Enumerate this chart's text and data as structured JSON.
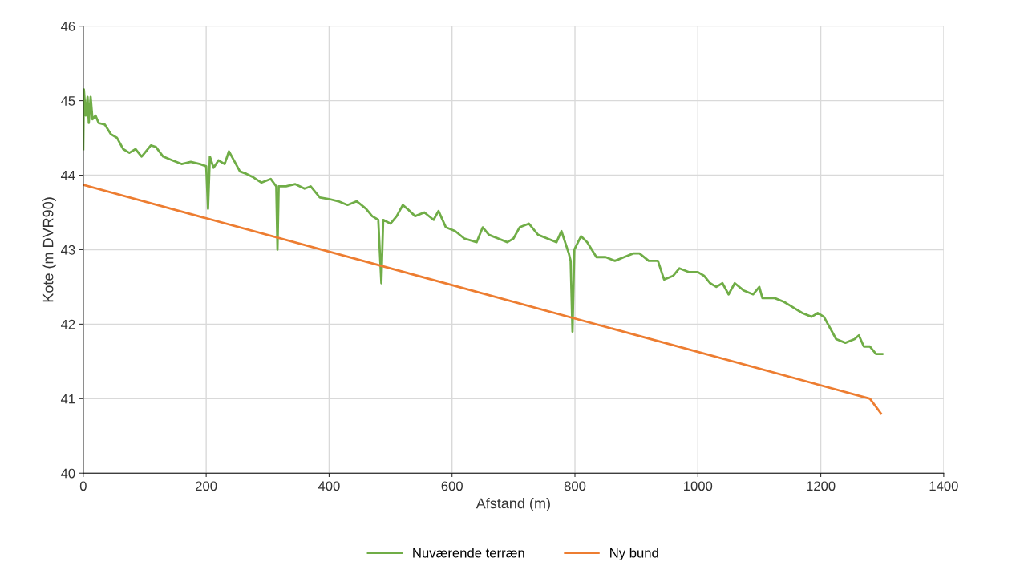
{
  "chart_data": {
    "type": "line",
    "xlabel": "Afstand (m)",
    "ylabel": "Kote (m DVR90)",
    "xlim": [
      0,
      1400
    ],
    "xticks": [
      0,
      200,
      400,
      600,
      800,
      1000,
      1200,
      1400
    ],
    "ylim": [
      40,
      46
    ],
    "yticks": [
      40,
      41,
      42,
      43,
      44,
      45,
      46
    ],
    "grid": true,
    "legend": "bottom",
    "marker": "none",
    "line_style": "solid",
    "series": [
      {
        "name": "Nuværende terræn",
        "color": "#70ad47",
        "x": [
          0,
          1,
          4,
          7,
          9,
          12,
          15,
          20,
          25,
          35,
          45,
          55,
          65,
          75,
          85,
          95,
          110,
          118,
          130,
          145,
          160,
          175,
          190,
          200,
          203,
          206,
          212,
          220,
          230,
          237,
          245,
          255,
          265,
          275,
          290,
          305,
          314,
          316,
          318,
          330,
          345,
          360,
          370,
          385,
          400,
          415,
          430,
          445,
          460,
          470,
          480,
          485,
          488,
          500,
          510,
          520,
          527,
          540,
          555,
          570,
          578,
          590,
          605,
          620,
          640,
          650,
          660,
          675,
          690,
          700,
          710,
          725,
          740,
          755,
          770,
          778,
          790,
          793,
          796,
          799,
          805,
          810,
          820,
          835,
          850,
          865,
          880,
          895,
          905,
          920,
          935,
          945,
          960,
          970,
          985,
          1000,
          1010,
          1020,
          1030,
          1040,
          1050,
          1060,
          1075,
          1090,
          1100,
          1105,
          1125,
          1140,
          1150,
          1170,
          1185,
          1195,
          1205,
          1215,
          1225,
          1240,
          1255,
          1262,
          1270,
          1280,
          1290,
          1300
        ],
        "values": [
          44.35,
          45.15,
          44.8,
          45.05,
          44.7,
          45.05,
          44.75,
          44.8,
          44.7,
          44.68,
          44.55,
          44.5,
          44.35,
          44.3,
          44.35,
          44.25,
          44.4,
          44.38,
          44.25,
          44.2,
          44.15,
          44.18,
          44.15,
          44.12,
          43.55,
          44.25,
          44.1,
          44.2,
          44.15,
          44.32,
          44.2,
          44.05,
          44.02,
          43.98,
          43.9,
          43.95,
          43.85,
          43.0,
          43.85,
          43.85,
          43.88,
          43.82,
          43.85,
          43.7,
          43.68,
          43.65,
          43.6,
          43.65,
          43.55,
          43.45,
          43.4,
          42.55,
          43.4,
          43.35,
          43.45,
          43.6,
          43.55,
          43.45,
          43.5,
          43.4,
          43.52,
          43.3,
          43.25,
          43.15,
          43.1,
          43.3,
          43.2,
          43.15,
          43.1,
          43.15,
          43.3,
          43.35,
          43.2,
          43.15,
          43.1,
          43.25,
          42.95,
          42.85,
          41.9,
          43.0,
          43.1,
          43.18,
          43.1,
          42.9,
          42.9,
          42.85,
          42.9,
          42.95,
          42.95,
          42.85,
          42.85,
          42.6,
          42.65,
          42.75,
          42.7,
          42.7,
          42.65,
          42.55,
          42.5,
          42.55,
          42.4,
          42.55,
          42.45,
          42.4,
          42.5,
          42.35,
          42.35,
          42.3,
          42.25,
          42.15,
          42.1,
          42.15,
          42.1,
          41.95,
          41.8,
          41.75,
          41.8,
          41.85,
          41.7,
          41.7,
          41.6,
          41.6
        ]
      },
      {
        "name": "Ny bund",
        "color": "#ed7d31",
        "x": [
          0,
          1280,
          1298
        ],
        "values": [
          43.87,
          41.0,
          40.8
        ]
      }
    ]
  }
}
